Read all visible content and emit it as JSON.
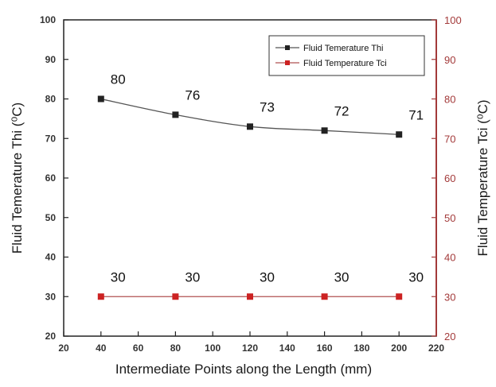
{
  "chart_data": {
    "type": "line",
    "x": [
      40,
      80,
      120,
      160,
      200
    ],
    "xlim": [
      20,
      220
    ],
    "xticks": [
      20,
      40,
      60,
      80,
      100,
      120,
      140,
      160,
      180,
      200,
      220
    ],
    "ylim_left": [
      20,
      100
    ],
    "yticks_left": [
      20,
      30,
      40,
      50,
      60,
      70,
      80,
      90,
      100
    ],
    "ylim_right": [
      20,
      100
    ],
    "yticks_right": [
      20,
      30,
      40,
      50,
      60,
      70,
      80,
      90,
      100
    ],
    "xlabel": "Intermediate Points along the Length (mm)",
    "ylabel_left": "Fluid Temerature Thi (⁰C)",
    "ylabel_right": "Fluid Temperature Tci (⁰C)",
    "legend_position": "top-right",
    "series": [
      {
        "name": "Fluid Temerature Thi",
        "values": [
          80,
          76,
          73,
          72,
          71
        ],
        "color": "#222222",
        "line_color": "#555555",
        "axis": "left",
        "data_labels": [
          "80",
          "76",
          "73",
          "72",
          "71"
        ]
      },
      {
        "name": "Fluid Temperature Tci",
        "values": [
          30,
          30,
          30,
          30,
          30
        ],
        "color": "#cc2222",
        "line_color": "#b05050",
        "axis": "right",
        "data_labels": [
          "30",
          "30",
          "30",
          "30",
          "30"
        ]
      }
    ],
    "right_axis_color": "#a33a3a"
  }
}
